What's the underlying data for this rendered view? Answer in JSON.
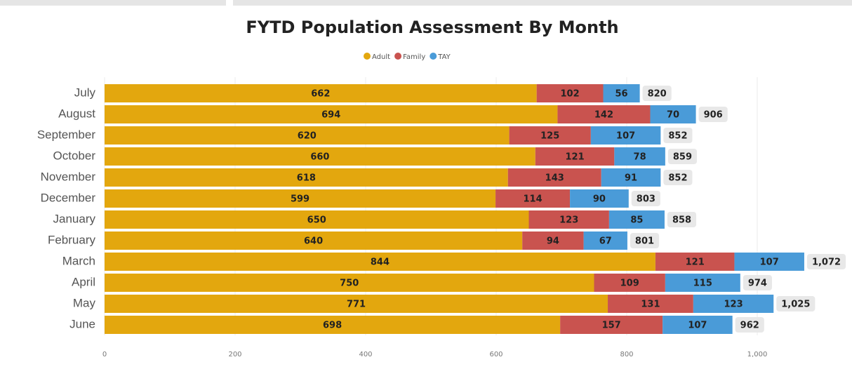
{
  "chart_data": {
    "type": "stacked_barh",
    "title": "FYTD Population Assessment By Month",
    "categories": [
      "July",
      "August",
      "September",
      "October",
      "November",
      "December",
      "January",
      "February",
      "March",
      "April",
      "May",
      "June"
    ],
    "series": [
      {
        "name": "Adult",
        "color": "#e3a70e",
        "values": [
          662,
          694,
          620,
          660,
          618,
          599,
          650,
          640,
          844,
          750,
          771,
          698
        ]
      },
      {
        "name": "Family",
        "color": "#c9534f",
        "values": [
          102,
          142,
          125,
          121,
          143,
          114,
          123,
          94,
          121,
          109,
          131,
          157
        ]
      },
      {
        "name": "TAY",
        "color": "#4a9bd8",
        "values": [
          56,
          70,
          107,
          78,
          91,
          90,
          85,
          67,
          107,
          115,
          123,
          107
        ]
      }
    ],
    "totals": [
      820,
      906,
      852,
      859,
      852,
      803,
      858,
      801,
      1072,
      974,
      1025,
      962
    ],
    "total_labels": [
      "820",
      "906",
      "852",
      "859",
      "852",
      "803",
      "858",
      "801",
      "1,072",
      "974",
      "1,025",
      "962"
    ],
    "xlim": [
      0,
      1120
    ],
    "xticks": [
      0,
      200,
      400,
      600,
      800,
      {
        "value": 1000,
        "label": "1,000"
      }
    ],
    "grid": true,
    "legend": "top"
  }
}
